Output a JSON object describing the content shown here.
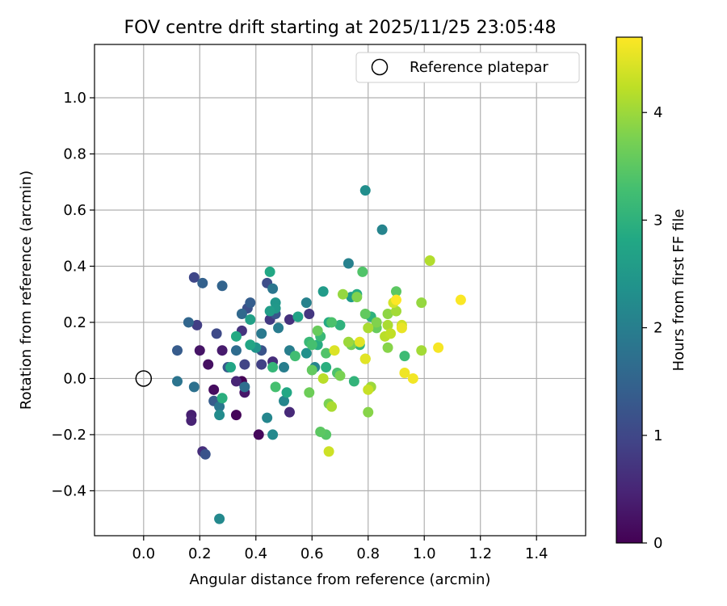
{
  "chart_data": {
    "type": "scatter",
    "title": "FOV centre drift starting at 2025/11/25 23:05:48",
    "xlabel": "Angular distance from reference (arcmin)",
    "ylabel": "Rotation from reference (arcmin)",
    "xlim": [
      -0.175,
      1.575
    ],
    "ylim": [
      -0.56,
      1.19
    ],
    "xticks": [
      0.0,
      0.2,
      0.4,
      0.6,
      0.8,
      1.0,
      1.2,
      1.4
    ],
    "xtick_labels": [
      "0.0",
      "0.2",
      "0.4",
      "0.6",
      "0.8",
      "1.0",
      "1.2",
      "1.4"
    ],
    "yticks": [
      -0.4,
      -0.2,
      0.0,
      0.2,
      0.4,
      0.6,
      0.8,
      1.0
    ],
    "ytick_labels": [
      "−0.4",
      "−0.2",
      "0.0",
      "0.2",
      "0.4",
      "0.6",
      "0.8",
      "1.0"
    ],
    "grid": true,
    "legend": {
      "position": "top-right",
      "entries": [
        "Reference platepar"
      ]
    },
    "reference_point": {
      "x": 0.0,
      "y": 0.0
    },
    "colorbar": {
      "label": "Hours from first FF file",
      "colormap": "viridis",
      "range": [
        0,
        4.7
      ],
      "ticks": [
        0,
        1,
        2,
        3,
        4
      ],
      "tick_labels": [
        "0",
        "1",
        "2",
        "3",
        "4"
      ]
    },
    "points": [
      {
        "x": 0.35,
        "y": -0.01,
        "t": 0.0
      },
      {
        "x": 0.33,
        "y": -0.13,
        "t": 0.05
      },
      {
        "x": 0.41,
        "y": -0.2,
        "t": 0.1
      },
      {
        "x": 0.25,
        "y": -0.04,
        "t": 0.15
      },
      {
        "x": 0.23,
        "y": 0.05,
        "t": 0.2
      },
      {
        "x": 0.2,
        "y": 0.1,
        "t": 0.25
      },
      {
        "x": 0.36,
        "y": -0.05,
        "t": 0.3
      },
      {
        "x": 0.28,
        "y": 0.1,
        "t": 0.35
      },
      {
        "x": 0.17,
        "y": -0.13,
        "t": 0.4
      },
      {
        "x": 0.17,
        "y": -0.15,
        "t": 0.45
      },
      {
        "x": 0.33,
        "y": -0.01,
        "t": 0.5
      },
      {
        "x": 0.52,
        "y": -0.12,
        "t": 0.55
      },
      {
        "x": 0.46,
        "y": 0.06,
        "t": 0.6
      },
      {
        "x": 0.21,
        "y": -0.26,
        "t": 0.62
      },
      {
        "x": 0.52,
        "y": 0.21,
        "t": 0.65
      },
      {
        "x": 0.35,
        "y": 0.17,
        "t": 0.7
      },
      {
        "x": 0.59,
        "y": 0.23,
        "t": 0.75
      },
      {
        "x": 0.45,
        "y": 0.21,
        "t": 0.8
      },
      {
        "x": 0.19,
        "y": 0.19,
        "t": 0.85
      },
      {
        "x": 0.42,
        "y": 0.05,
        "t": 0.9
      },
      {
        "x": 0.36,
        "y": 0.05,
        "t": 0.95
      },
      {
        "x": 0.18,
        "y": 0.36,
        "t": 1.0
      },
      {
        "x": 0.26,
        "y": 0.16,
        "t": 1.05
      },
      {
        "x": 0.44,
        "y": 0.34,
        "t": 1.1
      },
      {
        "x": 0.37,
        "y": 0.25,
        "t": 1.15
      },
      {
        "x": 0.42,
        "y": 0.1,
        "t": 1.2
      },
      {
        "x": 0.22,
        "y": -0.27,
        "t": 1.2
      },
      {
        "x": 0.47,
        "y": 0.23,
        "t": 1.25
      },
      {
        "x": 0.3,
        "y": 0.04,
        "t": 1.3
      },
      {
        "x": 0.12,
        "y": 0.1,
        "t": 1.35
      },
      {
        "x": 0.25,
        "y": -0.08,
        "t": 1.35
      },
      {
        "x": 0.38,
        "y": 0.27,
        "t": 1.4
      },
      {
        "x": 0.21,
        "y": 0.34,
        "t": 1.45
      },
      {
        "x": 0.28,
        "y": 0.33,
        "t": 1.5
      },
      {
        "x": 0.16,
        "y": 0.2,
        "t": 1.55
      },
      {
        "x": 0.35,
        "y": 0.23,
        "t": 1.6
      },
      {
        "x": 0.33,
        "y": 0.1,
        "t": 1.65
      },
      {
        "x": 0.36,
        "y": -0.03,
        "t": 1.7
      },
      {
        "x": 0.18,
        "y": -0.03,
        "t": 1.75
      },
      {
        "x": 0.12,
        "y": -0.01,
        "t": 1.8
      },
      {
        "x": 0.27,
        "y": -0.1,
        "t": 1.85
      },
      {
        "x": 0.46,
        "y": 0.32,
        "t": 1.85
      },
      {
        "x": 0.42,
        "y": 0.16,
        "t": 1.9
      },
      {
        "x": 0.48,
        "y": 0.18,
        "t": 1.95
      },
      {
        "x": 0.52,
        "y": 0.1,
        "t": 2.0
      },
      {
        "x": 0.5,
        "y": 0.04,
        "t": 2.0
      },
      {
        "x": 0.58,
        "y": 0.27,
        "t": 2.05
      },
      {
        "x": 0.73,
        "y": 0.41,
        "t": 2.05
      },
      {
        "x": 0.85,
        "y": 0.53,
        "t": 2.1
      },
      {
        "x": 0.61,
        "y": 0.04,
        "t": 2.1
      },
      {
        "x": 0.5,
        "y": -0.08,
        "t": 2.15
      },
      {
        "x": 0.44,
        "y": -0.14,
        "t": 2.15
      },
      {
        "x": 0.46,
        "y": -0.2,
        "t": 2.2
      },
      {
        "x": 0.27,
        "y": -0.5,
        "t": 2.2
      },
      {
        "x": 0.27,
        "y": -0.13,
        "t": 2.25
      },
      {
        "x": 0.79,
        "y": 0.67,
        "t": 2.3
      },
      {
        "x": 0.58,
        "y": 0.09,
        "t": 2.35
      },
      {
        "x": 0.4,
        "y": 0.11,
        "t": 2.4
      },
      {
        "x": 0.47,
        "y": 0.27,
        "t": 2.45
      },
      {
        "x": 0.47,
        "y": 0.25,
        "t": 2.5
      },
      {
        "x": 0.64,
        "y": 0.31,
        "t": 2.55
      },
      {
        "x": 0.74,
        "y": 0.29,
        "t": 2.55
      },
      {
        "x": 0.45,
        "y": 0.24,
        "t": 2.6
      },
      {
        "x": 0.38,
        "y": 0.21,
        "t": 2.65
      },
      {
        "x": 0.55,
        "y": 0.22,
        "t": 2.7
      },
      {
        "x": 0.31,
        "y": 0.04,
        "t": 2.75
      },
      {
        "x": 0.38,
        "y": 0.12,
        "t": 2.75
      },
      {
        "x": 0.51,
        "y": -0.05,
        "t": 2.8
      },
      {
        "x": 0.45,
        "y": 0.38,
        "t": 2.8
      },
      {
        "x": 0.66,
        "y": 0.2,
        "t": 2.85
      },
      {
        "x": 0.33,
        "y": 0.15,
        "t": 2.85
      },
      {
        "x": 0.62,
        "y": 0.12,
        "t": 2.9
      },
      {
        "x": 0.76,
        "y": 0.3,
        "t": 2.9
      },
      {
        "x": 0.28,
        "y": -0.07,
        "t": 2.95
      },
      {
        "x": 0.65,
        "y": 0.04,
        "t": 2.95
      },
      {
        "x": 0.81,
        "y": 0.22,
        "t": 3.0
      },
      {
        "x": 0.7,
        "y": 0.19,
        "t": 3.0
      },
      {
        "x": 0.75,
        "y": -0.01,
        "t": 3.05
      },
      {
        "x": 0.77,
        "y": 0.12,
        "t": 3.05
      },
      {
        "x": 0.46,
        "y": 0.04,
        "t": 3.1
      },
      {
        "x": 0.59,
        "y": 0.13,
        "t": 3.15
      },
      {
        "x": 0.63,
        "y": 0.15,
        "t": 3.15
      },
      {
        "x": 0.93,
        "y": 0.08,
        "t": 3.2
      },
      {
        "x": 0.54,
        "y": 0.08,
        "t": 3.25
      },
      {
        "x": 0.6,
        "y": 0.12,
        "t": 3.3
      },
      {
        "x": 0.47,
        "y": -0.03,
        "t": 3.3
      },
      {
        "x": 0.69,
        "y": 0.02,
        "t": 3.35
      },
      {
        "x": 0.67,
        "y": 0.2,
        "t": 3.35
      },
      {
        "x": 0.65,
        "y": 0.09,
        "t": 3.4
      },
      {
        "x": 0.78,
        "y": 0.38,
        "t": 3.4
      },
      {
        "x": 0.65,
        "y": -0.2,
        "t": 3.45
      },
      {
        "x": 0.63,
        "y": -0.19,
        "t": 3.5
      },
      {
        "x": 0.9,
        "y": 0.31,
        "t": 3.5
      },
      {
        "x": 0.79,
        "y": 0.23,
        "t": 3.55
      },
      {
        "x": 0.6,
        "y": 0.03,
        "t": 3.55
      },
      {
        "x": 0.83,
        "y": 0.18,
        "t": 3.6
      },
      {
        "x": 0.62,
        "y": 0.17,
        "t": 3.6
      },
      {
        "x": 0.59,
        "y": -0.05,
        "t": 3.65
      },
      {
        "x": 0.74,
        "y": 0.12,
        "t": 3.7
      },
      {
        "x": 0.7,
        "y": 0.01,
        "t": 3.75
      },
      {
        "x": 0.66,
        "y": -0.09,
        "t": 3.75
      },
      {
        "x": 0.76,
        "y": 0.29,
        "t": 3.8
      },
      {
        "x": 0.83,
        "y": 0.2,
        "t": 3.8
      },
      {
        "x": 0.87,
        "y": 0.11,
        "t": 3.85
      },
      {
        "x": 0.8,
        "y": -0.12,
        "t": 3.85
      },
      {
        "x": 0.79,
        "y": 0.07,
        "t": 3.9
      },
      {
        "x": 0.87,
        "y": 0.23,
        "t": 3.9
      },
      {
        "x": 0.71,
        "y": 0.3,
        "t": 3.95
      },
      {
        "x": 0.99,
        "y": 0.27,
        "t": 3.95
      },
      {
        "x": 0.73,
        "y": 0.13,
        "t": 4.0
      },
      {
        "x": 0.81,
        "y": -0.03,
        "t": 4.0
      },
      {
        "x": 0.9,
        "y": 0.24,
        "t": 4.05
      },
      {
        "x": 0.99,
        "y": 0.1,
        "t": 4.05
      },
      {
        "x": 0.87,
        "y": 0.19,
        "t": 4.1
      },
      {
        "x": 0.67,
        "y": -0.1,
        "t": 4.1
      },
      {
        "x": 0.8,
        "y": 0.18,
        "t": 4.1
      },
      {
        "x": 1.02,
        "y": 0.42,
        "t": 4.15
      },
      {
        "x": 0.64,
        "y": 0.0,
        "t": 4.2
      },
      {
        "x": 0.86,
        "y": 0.15,
        "t": 4.2
      },
      {
        "x": 0.88,
        "y": 0.16,
        "t": 4.25
      },
      {
        "x": 0.8,
        "y": -0.04,
        "t": 4.3
      },
      {
        "x": 0.92,
        "y": 0.19,
        "t": 4.35
      },
      {
        "x": 0.66,
        "y": -0.26,
        "t": 4.35
      },
      {
        "x": 0.89,
        "y": 0.27,
        "t": 4.4
      },
      {
        "x": 0.68,
        "y": 0.1,
        "t": 4.45
      },
      {
        "x": 0.77,
        "y": 0.13,
        "t": 4.5
      },
      {
        "x": 0.79,
        "y": 0.07,
        "t": 4.5
      },
      {
        "x": 0.92,
        "y": 0.18,
        "t": 4.55
      },
      {
        "x": 0.93,
        "y": 0.02,
        "t": 4.6
      },
      {
        "x": 0.96,
        "y": 0.0,
        "t": 4.62
      },
      {
        "x": 1.05,
        "y": 0.11,
        "t": 4.65
      },
      {
        "x": 1.13,
        "y": 0.28,
        "t": 4.68
      },
      {
        "x": 0.9,
        "y": 0.28,
        "t": 4.7
      }
    ]
  }
}
